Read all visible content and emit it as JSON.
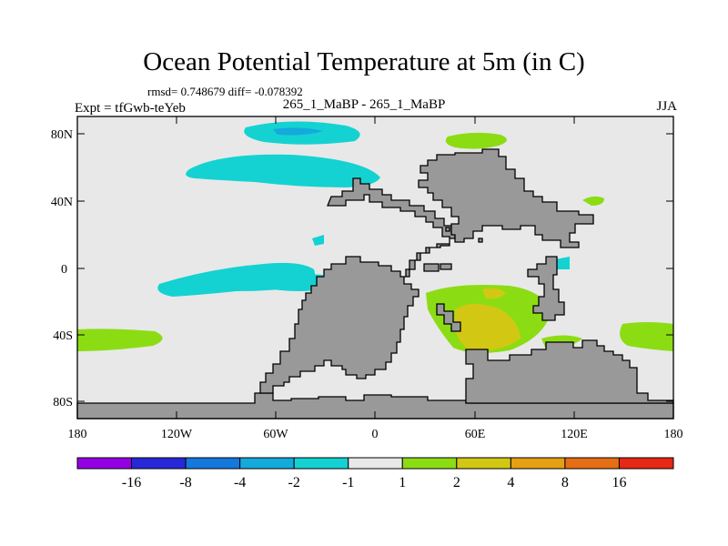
{
  "title": "Ocean Potential Temperature at 5m (in C)",
  "stats_line": "rmsd= 0.748679 diff= -0.078392",
  "expt_label": "Expt = tfGwb-teYeb",
  "subtitle": "265_1_MaBP - 265_1_MaBP",
  "season": "JJA",
  "map": {
    "lon_range": [
      -180,
      180
    ],
    "lat_range": [
      -90,
      90
    ],
    "lat_ticks": [
      "80N",
      "40N",
      "0",
      "40S",
      "80S"
    ],
    "lon_ticks": [
      "180",
      "120W",
      "60W",
      "0",
      "60E",
      "120E",
      "180"
    ],
    "land_color": "#999999",
    "ocean_color": "#e8e8e8"
  },
  "colorbar": {
    "labels": [
      "-16",
      "-8",
      "-4",
      "-2",
      "-1",
      "1",
      "2",
      "4",
      "8",
      "16"
    ],
    "colors": [
      "#9400e6",
      "#2828d8",
      "#1478dc",
      "#14aadc",
      "#14d2d2",
      "#e8e8e8",
      "#8cdc14",
      "#d2c814",
      "#e6a014",
      "#e66e14",
      "#e62814"
    ]
  }
}
